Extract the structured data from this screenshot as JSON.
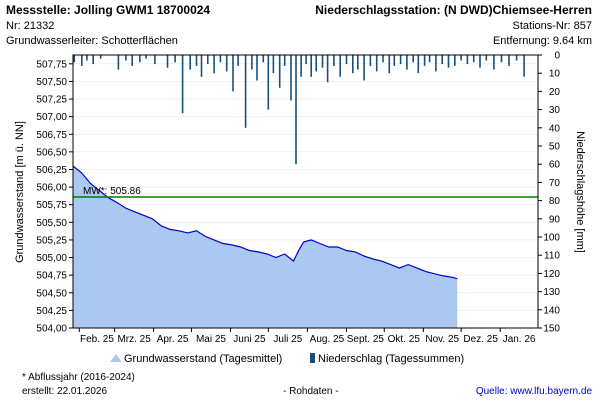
{
  "header": {
    "station_title": "Messstelle: Jolling GWM1 18700024",
    "station_nr": "Nr: 21332",
    "aquifer": "Grundwasserleiter:   Schotterflächen",
    "precip_station": "Niederschlagsstation: (N DWD)Chiemsee-Herren",
    "precip_station_nr": "Stations-Nr: 857",
    "distance": "Entfernung: 9.64 km"
  },
  "footer": {
    "note": "* Abflussjahr (2016-2024)",
    "created": "erstellt:  22.01.2026",
    "rawdata": "- Rohdaten -",
    "source": "Quelle: www.lfu.bayern.de"
  },
  "colors": {
    "groundwater_fill": "#aac8f0",
    "groundwater_line": "#0000cc",
    "precip_bar": "#1a4f7a",
    "mean_line": "#008000"
  },
  "chart_data": {
    "type": "area",
    "xlabel": "",
    "ylabel": "Grundwasserstand [m ü. NN]",
    "ylabel_right": "Niederschlagshöhe [mm]",
    "ylim": [
      504.0,
      507.875
    ],
    "ylim_right": [
      0,
      150
    ],
    "y_ticks": [
      "504,00",
      "504,25",
      "504,50",
      "504,75",
      "505,00",
      "505,25",
      "505,50",
      "505,75",
      "506,00",
      "506,25",
      "506,50",
      "506,75",
      "507,00",
      "507,25",
      "507,50",
      "507,75"
    ],
    "y_ticks_right": [
      "0",
      "10",
      "20",
      "30",
      "40",
      "50",
      "60",
      "70",
      "80",
      "90",
      "100",
      "110",
      "120",
      "130",
      "140",
      "150"
    ],
    "x_ticks": [
      "Feb. 25",
      "Mrz. 25",
      "Apr. 25",
      "Mai 25",
      "Juni 25",
      "Juli 25",
      "Aug. 25",
      "Sept. 25",
      "Okt. 25",
      "Nov. 25",
      "Dez. 25",
      "Jan. 26"
    ],
    "mean": {
      "label": "MW*: 505.86",
      "value": 505.86
    },
    "legend": [
      "Grundwasserstand (Tagesmittel)",
      "Niederschlag (Tagessummen)"
    ],
    "series": [
      {
        "name": "Grundwasserstand (Tagesmittel)",
        "x": [
          "2025-01-27",
          "2025-02-03",
          "2025-02-10",
          "2025-02-17",
          "2025-02-24",
          "2025-03-03",
          "2025-03-10",
          "2025-03-17",
          "2025-03-24",
          "2025-03-31",
          "2025-04-07",
          "2025-04-14",
          "2025-04-21",
          "2025-04-28",
          "2025-05-05",
          "2025-05-12",
          "2025-05-19",
          "2025-05-26",
          "2025-06-02",
          "2025-06-09",
          "2025-06-16",
          "2025-06-23",
          "2025-06-30",
          "2025-07-07",
          "2025-07-14",
          "2025-07-21",
          "2025-07-25",
          "2025-07-29",
          "2025-08-04",
          "2025-08-11",
          "2025-08-18",
          "2025-08-25",
          "2025-09-01",
          "2025-09-08",
          "2025-09-15",
          "2025-09-22",
          "2025-09-29",
          "2025-10-06",
          "2025-10-13",
          "2025-10-20",
          "2025-10-27",
          "2025-11-03",
          "2025-11-10",
          "2025-11-17",
          "2025-11-24",
          "2025-11-28"
        ],
        "values": [
          506.3,
          506.2,
          506.05,
          505.95,
          505.85,
          505.78,
          505.7,
          505.65,
          505.6,
          505.55,
          505.45,
          505.4,
          505.38,
          505.35,
          505.38,
          505.3,
          505.25,
          505.2,
          505.18,
          505.15,
          505.1,
          505.08,
          505.05,
          505.0,
          505.05,
          504.95,
          505.1,
          505.22,
          505.25,
          505.2,
          505.15,
          505.15,
          505.1,
          505.08,
          505.02,
          504.98,
          504.95,
          504.9,
          504.85,
          504.9,
          504.85,
          504.8,
          504.77,
          504.74,
          504.72,
          504.7
        ]
      },
      {
        "name": "Niederschlag (Tagessummen)",
        "x": [
          "2025-01-28",
          "2025-02-03",
          "2025-02-07",
          "2025-02-12",
          "2025-02-18",
          "2025-03-04",
          "2025-03-10",
          "2025-03-15",
          "2025-03-21",
          "2025-03-26",
          "2025-04-02",
          "2025-04-12",
          "2025-04-18",
          "2025-04-24",
          "2025-04-30",
          "2025-05-05",
          "2025-05-09",
          "2025-05-14",
          "2025-05-19",
          "2025-05-24",
          "2025-05-29",
          "2025-06-03",
          "2025-06-07",
          "2025-06-13",
          "2025-06-18",
          "2025-06-22",
          "2025-06-27",
          "2025-07-01",
          "2025-07-05",
          "2025-07-10",
          "2025-07-14",
          "2025-07-19",
          "2025-07-23",
          "2025-07-27",
          "2025-07-31",
          "2025-08-04",
          "2025-08-08",
          "2025-08-13",
          "2025-08-17",
          "2025-08-22",
          "2025-08-27",
          "2025-09-01",
          "2025-09-06",
          "2025-09-10",
          "2025-09-15",
          "2025-09-20",
          "2025-09-25",
          "2025-09-30",
          "2025-10-05",
          "2025-10-09",
          "2025-10-14",
          "2025-10-19",
          "2025-10-24",
          "2025-10-28",
          "2025-11-02",
          "2025-11-06",
          "2025-11-11",
          "2025-11-16",
          "2025-11-21",
          "2025-11-26",
          "2025-12-01",
          "2025-12-06",
          "2025-12-11",
          "2025-12-16",
          "2025-12-21",
          "2025-12-27",
          "2026-01-02",
          "2026-01-08",
          "2026-01-14",
          "2026-01-20"
        ],
        "values": [
          4,
          6,
          3,
          5,
          2,
          8,
          3,
          6,
          4,
          2,
          5,
          7,
          4,
          32,
          8,
          6,
          12,
          5,
          10,
          4,
          9,
          20,
          6,
          40,
          8,
          14,
          4,
          30,
          10,
          18,
          6,
          25,
          60,
          12,
          5,
          12,
          9,
          7,
          15,
          6,
          12,
          5,
          10,
          8,
          14,
          6,
          9,
          4,
          10,
          6,
          5,
          8,
          4,
          10,
          6,
          4,
          9,
          5,
          7,
          6,
          3,
          5,
          4,
          7,
          3,
          8,
          4,
          6,
          3,
          12
        ]
      }
    ]
  }
}
